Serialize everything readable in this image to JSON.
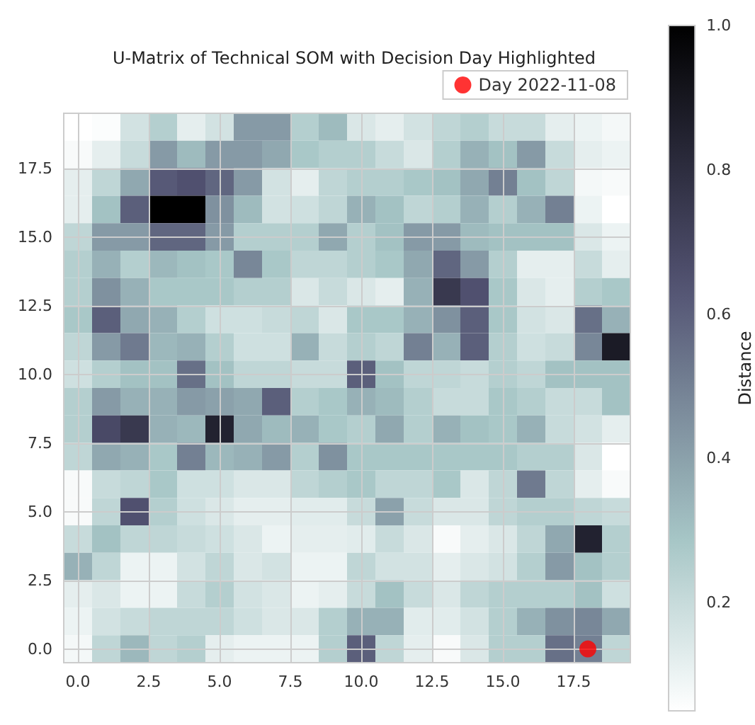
{
  "chart_data": {
    "type": "heatmap",
    "title": "U-Matrix of Technical SOM with Decision Day Highlighted",
    "clabel": "Distance",
    "x": [
      0,
      1,
      2,
      3,
      4,
      5,
      6,
      7,
      8,
      9,
      10,
      11,
      12,
      13,
      14,
      15,
      16,
      17,
      18,
      19
    ],
    "cells": [
      [
        0.05,
        0.06,
        0.17,
        0.25,
        0.12,
        0.17,
        0.42,
        0.42,
        0.25,
        0.32,
        0.15,
        0.12,
        0.17,
        0.22,
        0.25,
        0.2,
        0.2,
        0.12,
        0.1,
        0.08
      ],
      [
        0.07,
        0.12,
        0.2,
        0.42,
        0.32,
        0.42,
        0.42,
        0.38,
        0.28,
        0.25,
        0.25,
        0.2,
        0.15,
        0.25,
        0.35,
        0.3,
        0.42,
        0.2,
        0.12,
        0.1
      ],
      [
        0.12,
        0.22,
        0.38,
        0.62,
        0.65,
        0.58,
        0.42,
        0.17,
        0.12,
        0.22,
        0.25,
        0.25,
        0.28,
        0.3,
        0.38,
        0.5,
        0.3,
        0.22,
        0.08,
        0.07
      ],
      [
        0.12,
        0.3,
        0.6,
        1.0,
        1.0,
        0.45,
        0.32,
        0.17,
        0.18,
        0.22,
        0.35,
        0.3,
        0.22,
        0.25,
        0.35,
        0.25,
        0.35,
        0.5,
        0.1,
        0.05
      ],
      [
        0.22,
        0.42,
        0.42,
        0.58,
        0.58,
        0.42,
        0.25,
        0.25,
        0.25,
        0.38,
        0.25,
        0.3,
        0.42,
        0.42,
        0.32,
        0.3,
        0.3,
        0.3,
        0.15,
        0.1
      ],
      [
        0.25,
        0.35,
        0.25,
        0.33,
        0.3,
        0.28,
        0.48,
        0.28,
        0.22,
        0.22,
        0.25,
        0.28,
        0.38,
        0.58,
        0.42,
        0.25,
        0.12,
        0.12,
        0.2,
        0.12
      ],
      [
        0.25,
        0.45,
        0.35,
        0.28,
        0.28,
        0.28,
        0.25,
        0.25,
        0.15,
        0.2,
        0.15,
        0.12,
        0.35,
        0.75,
        0.65,
        0.28,
        0.15,
        0.12,
        0.25,
        0.28
      ],
      [
        0.28,
        0.6,
        0.38,
        0.35,
        0.25,
        0.18,
        0.18,
        0.2,
        0.22,
        0.15,
        0.28,
        0.28,
        0.35,
        0.45,
        0.6,
        0.28,
        0.17,
        0.15,
        0.55,
        0.35
      ],
      [
        0.22,
        0.42,
        0.52,
        0.33,
        0.35,
        0.25,
        0.18,
        0.18,
        0.35,
        0.2,
        0.25,
        0.22,
        0.5,
        0.35,
        0.6,
        0.25,
        0.18,
        0.2,
        0.48,
        0.88
      ],
      [
        0.18,
        0.25,
        0.3,
        0.3,
        0.55,
        0.3,
        0.22,
        0.22,
        0.2,
        0.2,
        0.6,
        0.3,
        0.22,
        0.22,
        0.2,
        0.25,
        0.22,
        0.3,
        0.3,
        0.3
      ],
      [
        0.25,
        0.42,
        0.35,
        0.35,
        0.42,
        0.4,
        0.38,
        0.6,
        0.25,
        0.28,
        0.35,
        0.32,
        0.25,
        0.2,
        0.2,
        0.28,
        0.25,
        0.2,
        0.2,
        0.3
      ],
      [
        0.25,
        0.68,
        0.75,
        0.35,
        0.33,
        0.85,
        0.38,
        0.32,
        0.35,
        0.28,
        0.25,
        0.38,
        0.25,
        0.35,
        0.3,
        0.28,
        0.35,
        0.2,
        0.17,
        0.12
      ],
      [
        0.22,
        0.38,
        0.35,
        0.28,
        0.5,
        0.33,
        0.35,
        0.42,
        0.25,
        0.45,
        0.28,
        0.28,
        0.28,
        0.28,
        0.28,
        0.28,
        0.25,
        0.25,
        0.15,
        0.05
      ],
      [
        0.07,
        0.2,
        0.22,
        0.28,
        0.18,
        0.18,
        0.15,
        0.15,
        0.22,
        0.25,
        0.28,
        0.22,
        0.22,
        0.28,
        0.15,
        0.22,
        0.52,
        0.22,
        0.12,
        0.07
      ],
      [
        0.07,
        0.22,
        0.65,
        0.25,
        0.18,
        0.15,
        0.12,
        0.12,
        0.13,
        0.13,
        0.2,
        0.4,
        0.2,
        0.15,
        0.15,
        0.22,
        0.25,
        0.25,
        0.22,
        0.2
      ],
      [
        0.2,
        0.3,
        0.22,
        0.22,
        0.2,
        0.18,
        0.15,
        0.1,
        0.12,
        0.12,
        0.13,
        0.2,
        0.15,
        0.07,
        0.12,
        0.15,
        0.22,
        0.38,
        0.85,
        0.25
      ],
      [
        0.35,
        0.22,
        0.1,
        0.1,
        0.17,
        0.22,
        0.15,
        0.17,
        0.1,
        0.1,
        0.22,
        0.17,
        0.17,
        0.12,
        0.15,
        0.17,
        0.25,
        0.42,
        0.3,
        0.25
      ],
      [
        0.12,
        0.15,
        0.1,
        0.1,
        0.2,
        0.25,
        0.17,
        0.15,
        0.1,
        0.12,
        0.2,
        0.3,
        0.2,
        0.15,
        0.22,
        0.25,
        0.25,
        0.25,
        0.3,
        0.18
      ],
      [
        0.1,
        0.17,
        0.2,
        0.22,
        0.22,
        0.22,
        0.18,
        0.15,
        0.15,
        0.25,
        0.35,
        0.35,
        0.13,
        0.13,
        0.17,
        0.25,
        0.35,
        0.45,
        0.48,
        0.38
      ],
      [
        0.08,
        0.22,
        0.33,
        0.22,
        0.25,
        0.12,
        0.1,
        0.1,
        0.1,
        0.25,
        0.6,
        0.22,
        0.12,
        0.07,
        0.15,
        0.25,
        0.25,
        0.55,
        0.5,
        0.22
      ]
    ],
    "series": [
      {
        "type": "scatter",
        "name": "Day 2022-11-08",
        "color": "#ff0000",
        "x": [
          18
        ],
        "values": [
          0
        ]
      }
    ],
    "marker": "circle",
    "xlim": [
      -0.5,
      19.5
    ],
    "xticks": [
      {
        "value": 0,
        "label": "0.0"
      },
      {
        "value": 2.5,
        "label": "2.5"
      },
      {
        "value": 5,
        "label": "5.0"
      },
      {
        "value": 7.5,
        "label": "7.5"
      },
      {
        "value": 10,
        "label": "10.0"
      },
      {
        "value": 12.5,
        "label": "12.5"
      },
      {
        "value": 15,
        "label": "15.0"
      },
      {
        "value": 17.5,
        "label": "17.5"
      }
    ],
    "ylim": [
      -0.5,
      19.5
    ],
    "yticks": [
      {
        "value": 0,
        "label": "0.0"
      },
      {
        "value": 2.5,
        "label": "2.5"
      },
      {
        "value": 5,
        "label": "5.0"
      },
      {
        "value": 7.5,
        "label": "7.5"
      },
      {
        "value": 10,
        "label": "10.0"
      },
      {
        "value": 12.5,
        "label": "12.5"
      },
      {
        "value": 15,
        "label": "15.0"
      },
      {
        "value": 17.5,
        "label": "17.5"
      }
    ],
    "clim": [
      0.05,
      1.0
    ],
    "cticks": [
      0.2,
      0.4,
      0.6,
      0.8,
      {
        "value": 1.0,
        "label": "1.0"
      }
    ],
    "grid": true,
    "legend": "top right"
  }
}
